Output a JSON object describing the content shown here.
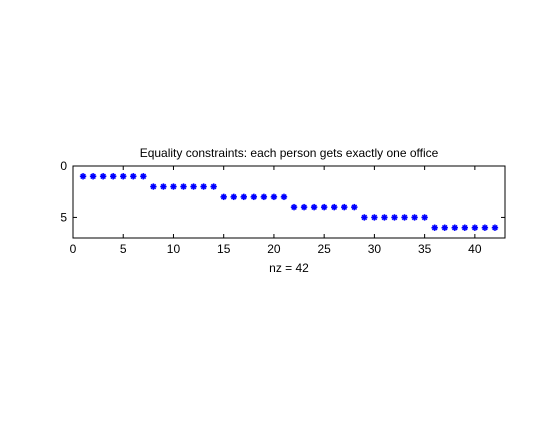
{
  "chart_data": {
    "type": "scatter",
    "title": "Equality constraints: each person gets exactly one office",
    "xlabel": "nz = 42",
    "ylabel": "",
    "xlim": [
      0,
      43
    ],
    "ylim": [
      0,
      7
    ],
    "y_reversed": true,
    "xticks": [
      0,
      5,
      10,
      15,
      20,
      25,
      30,
      35,
      40
    ],
    "yticks": [
      0,
      5
    ],
    "grid": false,
    "legend": "none",
    "marker": "asterisk",
    "marker_color": "#0000ff",
    "series": [
      {
        "x": [
          1,
          2,
          3,
          4,
          5,
          6,
          7,
          8,
          9,
          10,
          11,
          12,
          13,
          14,
          15,
          16,
          17,
          18,
          19,
          20,
          21,
          22,
          23,
          24,
          25,
          26,
          27,
          28,
          29,
          30,
          31,
          32,
          33,
          34,
          35,
          36,
          37,
          38,
          39,
          40,
          41,
          42
        ],
        "y": [
          1,
          1,
          1,
          1,
          1,
          1,
          1,
          2,
          2,
          2,
          2,
          2,
          2,
          2,
          3,
          3,
          3,
          3,
          3,
          3,
          3,
          4,
          4,
          4,
          4,
          4,
          4,
          4,
          5,
          5,
          5,
          5,
          5,
          5,
          5,
          6,
          6,
          6,
          6,
          6,
          6,
          6
        ]
      }
    ]
  }
}
